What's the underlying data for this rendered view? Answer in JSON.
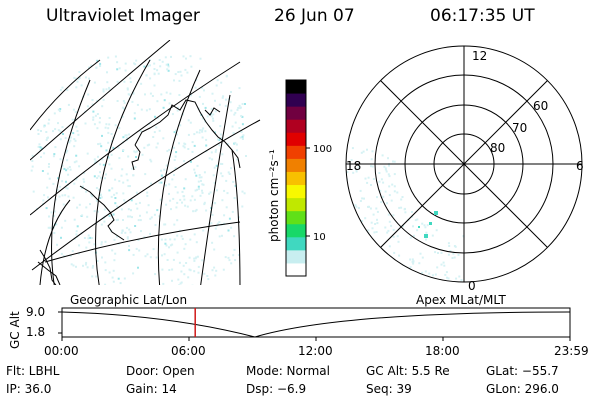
{
  "header": {
    "instrument": "Ultraviolet Imager",
    "date": "26 Jun 07",
    "time": "06:17:35 UT"
  },
  "colorbar": {
    "unit_label": "photon cm⁻²s⁻¹",
    "tick_100": "100",
    "tick_10": "10",
    "colors": [
      "#ffffff",
      "#c8eef0",
      "#40d8c0",
      "#18d868",
      "#60e018",
      "#c0e800",
      "#f8f800",
      "#f8c000",
      "#f08000",
      "#f04000",
      "#e00000",
      "#b00020",
      "#700040",
      "#300050",
      "#000000"
    ]
  },
  "polar": {
    "mlt_12": "12",
    "mlt_18": "18",
    "mlt_6": "6",
    "mlt_0": "0",
    "lat_60": "60",
    "lat_70": "70",
    "lat_80": "80"
  },
  "timeline": {
    "left_title": "Geographic Lat/Lon",
    "right_title": "Apex MLat/MLT",
    "yaxis_label": "GC Alt",
    "y_top": "9.0",
    "y_bottom": "1.8",
    "x_ticks": [
      "00:00",
      "06:00",
      "12:00",
      "18:00",
      "23:59"
    ],
    "current_time_fraction": 0.2623,
    "marker_color": "#d01818"
  },
  "footer": {
    "flt": "Flt: LBHL",
    "door": "Door: Open",
    "mode": "Mode: Normal",
    "gc_alt": "GC Alt: 5.5 Re",
    "glat": "GLat: −55.7",
    "ip": "IP: 36.0",
    "gain": "Gain: 14",
    "dsp": "Dsp:   −6.9",
    "seq": "Seq: 39",
    "glon": "GLon: 296.0"
  }
}
